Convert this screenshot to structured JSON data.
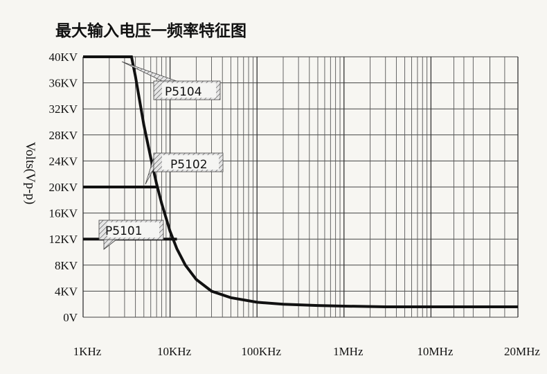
{
  "chart_data": {
    "type": "line",
    "title": "最大输入电压一频率特征图",
    "ylabel": "Volts(Vp-p)",
    "xlabel": "",
    "x_scale": "log",
    "x_ticks": [
      {
        "label": "1KHz",
        "value": 1000
      },
      {
        "label": "10KHz",
        "value": 10000
      },
      {
        "label": "100KHz",
        "value": 100000
      },
      {
        "label": "1MHz",
        "value": 1000000
      },
      {
        "label": "10MHz",
        "value": 10000000
      },
      {
        "label": "20MHz",
        "value": 20000000
      }
    ],
    "y_ticks": [
      {
        "label": "40KV",
        "value": 40
      },
      {
        "label": "36KV",
        "value": 36
      },
      {
        "label": "32KV",
        "value": 32
      },
      {
        "label": "28KV",
        "value": 28
      },
      {
        "label": "24KV",
        "value": 24
      },
      {
        "label": "20KV",
        "value": 20
      },
      {
        "label": "16KV",
        "value": 16
      },
      {
        "label": "12KV",
        "value": 12
      },
      {
        "label": "8KV",
        "value": 8
      },
      {
        "label": "4KV",
        "value": 4
      },
      {
        "label": "0V",
        "value": 0
      }
    ],
    "ylim": [
      0,
      40
    ],
    "grid": true,
    "curve": {
      "x": [
        1000,
        3600,
        4000,
        5000,
        6000,
        7000,
        8000,
        10000,
        12000,
        15000,
        20000,
        30000,
        50000,
        100000,
        200000,
        500000,
        1000000,
        3000000,
        10000000,
        20000000
      ],
      "y": [
        40,
        40,
        37,
        29.5,
        24.5,
        20.5,
        17.5,
        13.2,
        10.5,
        8,
        5.8,
        4,
        3,
        2.3,
        2,
        1.8,
        1.7,
        1.6,
        1.6,
        1.6
      ]
    },
    "series": [
      {
        "name": "P5104",
        "x": [
          1000,
          3600
        ],
        "y": [
          40,
          40
        ]
      },
      {
        "name": "P5102",
        "x": [
          1000,
          7000
        ],
        "y": [
          20,
          20
        ]
      },
      {
        "name": "P5101",
        "x": [
          1000,
          12000
        ],
        "y": [
          12,
          12
        ]
      }
    ],
    "annotations": [
      {
        "text": "P5104",
        "series": "P5104"
      },
      {
        "text": "P5102",
        "series": "P5102"
      },
      {
        "text": "P5101",
        "series": "P5101"
      }
    ]
  }
}
